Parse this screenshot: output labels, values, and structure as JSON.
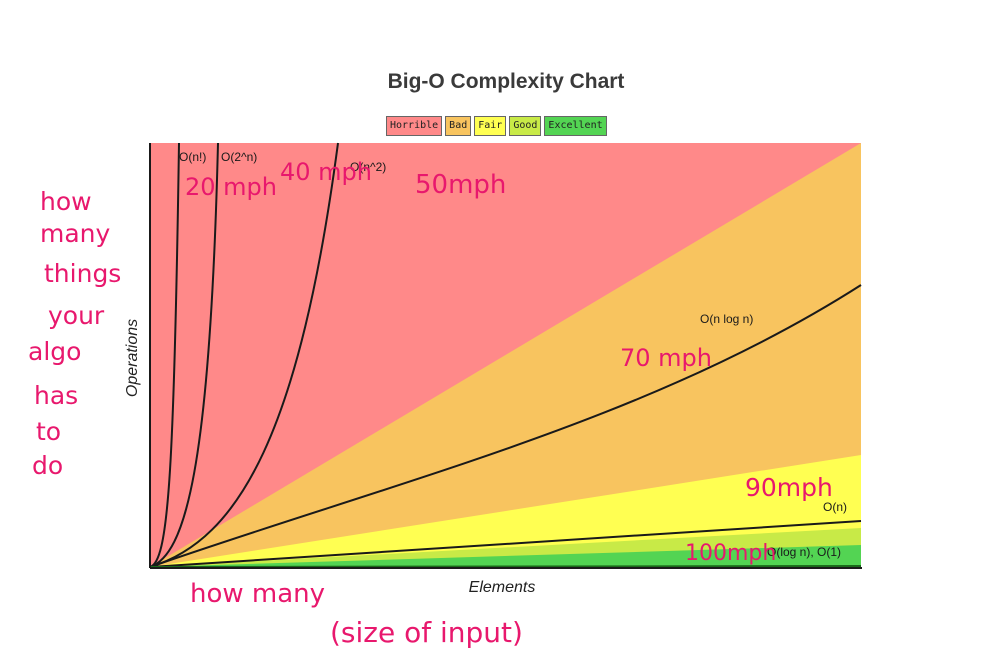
{
  "chart_data": {
    "type": "line",
    "title": "Big-O Complexity Chart",
    "xlabel": "Elements",
    "ylabel": "Operations",
    "legend": {
      "placement": "top-center",
      "items": [
        {
          "label": "Horrible",
          "color": "#ff8989"
        },
        {
          "label": "Bad",
          "color": "#f8c45f"
        },
        {
          "label": "Fair",
          "color": "#ffff52"
        },
        {
          "label": "Good",
          "color": "#c8ea47"
        },
        {
          "label": "Excellent",
          "color": "#53d453"
        }
      ]
    },
    "zones": [
      {
        "name": "Horrible",
        "color": "#ff8989"
      },
      {
        "name": "Bad",
        "color": "#f8c45f"
      },
      {
        "name": "Fair",
        "color": "#ffff52"
      },
      {
        "name": "Good",
        "color": "#c8ea47"
      },
      {
        "name": "Excellent",
        "color": "#53d453"
      }
    ],
    "series": [
      {
        "name": "O(n!)"
      },
      {
        "name": "O(2^n)"
      },
      {
        "name": "O(n^2)"
      },
      {
        "name": "O(n log n)"
      },
      {
        "name": "O(n)"
      },
      {
        "name": "O(log n), O(1)"
      }
    ],
    "grid": false
  },
  "annotations": {
    "y_note": [
      "how",
      "many",
      "things",
      "your",
      "algo",
      "has",
      "to",
      "do"
    ],
    "x_note_1": "how many",
    "x_note_2": "(size of input)",
    "speeds": [
      "20 mph",
      "40 mph",
      "50mph",
      "70 mph",
      "90mph",
      "100mph"
    ],
    "ink_color": "#e8186d"
  }
}
